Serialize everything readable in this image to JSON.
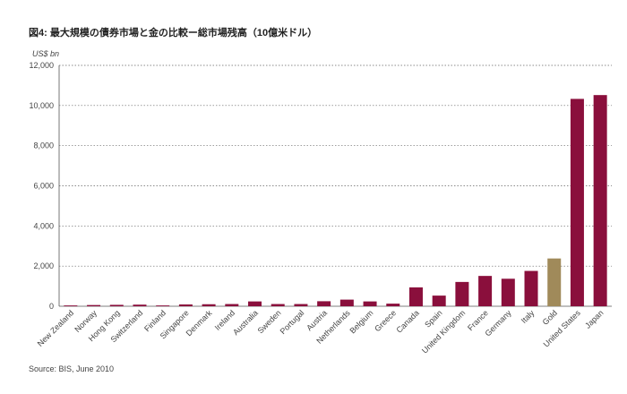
{
  "title": "図4: 最大規模の債券市場と金の比較ー総市場残高（10億米ドル）",
  "source": "Source: BIS, June 2010",
  "colors": {
    "bar": "#8a0f3c",
    "gold": "#a08a5a"
  },
  "chart_data": {
    "type": "bar",
    "title": "図4: 最大規模の債券市場と金の比較ー総市場残高（10億米ドル）",
    "ylabel": "US$ bn",
    "xlabel": "",
    "ylim": [
      0,
      12000
    ],
    "yticks": [
      "0",
      "2,000",
      "4,000",
      "6,000",
      "8,000",
      "10,000",
      "12,000"
    ],
    "grid": true,
    "categories": [
      "New Zealand",
      "Norway",
      "Hong Kong",
      "Switzerland",
      "Finland",
      "Singapore",
      "Denmark",
      "Ireland",
      "Australia",
      "Sweden",
      "Portugal",
      "Austria",
      "Netherlands",
      "Belgium",
      "Greece",
      "Canada",
      "Spain",
      "United Kingdom",
      "France",
      "Germany",
      "Italy",
      "Gold",
      "United States",
      "Japan"
    ],
    "values": [
      40,
      60,
      70,
      80,
      40,
      90,
      100,
      110,
      240,
      110,
      110,
      250,
      330,
      240,
      130,
      940,
      530,
      1210,
      1510,
      1370,
      1760,
      2380,
      10330,
      10520
    ],
    "highlight": "Gold"
  }
}
